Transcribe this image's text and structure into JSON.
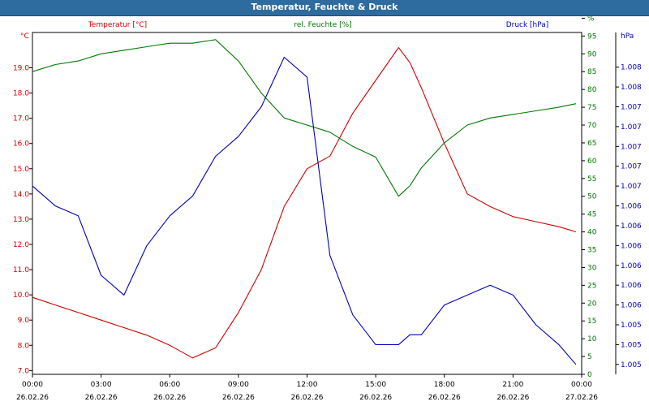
{
  "window": {
    "title": "Temperatur, Feuchte & Druck"
  },
  "colors": {
    "temperature": "#cc0000",
    "humidity": "#007700",
    "pressure": "#0000bb",
    "title_bg": "#2e6b9e"
  },
  "chart_data": {
    "type": "line",
    "title": "Temperatur, Feuchte & Druck",
    "x": [
      "00:00",
      "01:00",
      "02:00",
      "03:00",
      "04:00",
      "05:00",
      "06:00",
      "07:00",
      "08:00",
      "09:00",
      "10:00",
      "11:00",
      "12:00",
      "13:00",
      "14:00",
      "15:00",
      "16:00",
      "16:30",
      "17:00",
      "18:00",
      "19:00",
      "20:00",
      "21:00",
      "22:00",
      "23:00",
      "23:45"
    ],
    "x_ticks": [
      {
        "time": "00:00",
        "date": "26.02.26"
      },
      {
        "time": "03:00",
        "date": "26.02.26"
      },
      {
        "time": "06:00",
        "date": "26.02.26"
      },
      {
        "time": "09:00",
        "date": "26.02.26"
      },
      {
        "time": "12:00",
        "date": "26.02.26"
      },
      {
        "time": "15:00",
        "date": "26.02.26"
      },
      {
        "time": "18:00",
        "date": "26.02.26"
      },
      {
        "time": "21:00",
        "date": "26.02.26"
      },
      {
        "time": "00:00",
        "date": "27.02.26"
      }
    ],
    "axes": {
      "left": {
        "label": "Temperatur [°C]",
        "unit": "°C",
        "range": [
          6.85,
          20.4
        ],
        "ticks": [
          "7.0",
          "8.0",
          "9.0",
          "10.0",
          "11.0",
          "12.0",
          "13.0",
          "14.0",
          "15.0",
          "16.0",
          "17.0",
          "18.0",
          "19.0"
        ]
      },
      "right1": {
        "label": "rel. Feuchte [%]",
        "unit": "%",
        "range": [
          0,
          96
        ],
        "ticks": [
          "0",
          "5",
          "10",
          "15",
          "20",
          "25",
          "30",
          "35",
          "40",
          "45",
          "50",
          "55",
          "60",
          "65",
          "70",
          "75",
          "80",
          "85",
          "90",
          "95",
          "%"
        ]
      },
      "right2": {
        "label": "Druck [hPa]",
        "unit": "hPa",
        "range": [
          1004.9,
          1008.35
        ],
        "ticks": [
          "1.005",
          "1.005",
          "1.005",
          "1.006",
          "1.006",
          "1.006",
          "1.006",
          "1.006",
          "1.006",
          "1.007",
          "1.007",
          "1.007",
          "1.007",
          "1.007",
          "1.008",
          "1.008"
        ]
      }
    },
    "series": [
      {
        "name": "Temperatur [°C]",
        "axis": "left",
        "values": [
          9.9,
          9.6,
          9.3,
          9.0,
          8.7,
          8.4,
          8.0,
          7.5,
          7.9,
          9.3,
          11.0,
          13.5,
          15.0,
          15.5,
          17.2,
          18.5,
          19.8,
          19.2,
          18.2,
          16.0,
          14.0,
          13.5,
          13.1,
          12.9,
          12.7,
          12.5
        ]
      },
      {
        "name": "rel. Feuchte [%]",
        "axis": "right1",
        "values": [
          85,
          87,
          88,
          90,
          91,
          92,
          93,
          93,
          94,
          88,
          79,
          72,
          70,
          68,
          64,
          61,
          50,
          53,
          58,
          65,
          70,
          72,
          73,
          74,
          75,
          76
        ]
      },
      {
        "name": "Druck [hPa]",
        "axis": "right2",
        "values": [
          1006.8,
          1006.6,
          1006.5,
          1005.9,
          1005.7,
          1006.2,
          1006.5,
          1006.7,
          1007.1,
          1007.3,
          1007.6,
          1008.1,
          1007.9,
          1006.1,
          1005.5,
          1005.2,
          1005.2,
          1005.3,
          1005.3,
          1005.6,
          1005.7,
          1005.8,
          1005.7,
          1005.4,
          1005.2,
          1005.0
        ]
      }
    ]
  }
}
